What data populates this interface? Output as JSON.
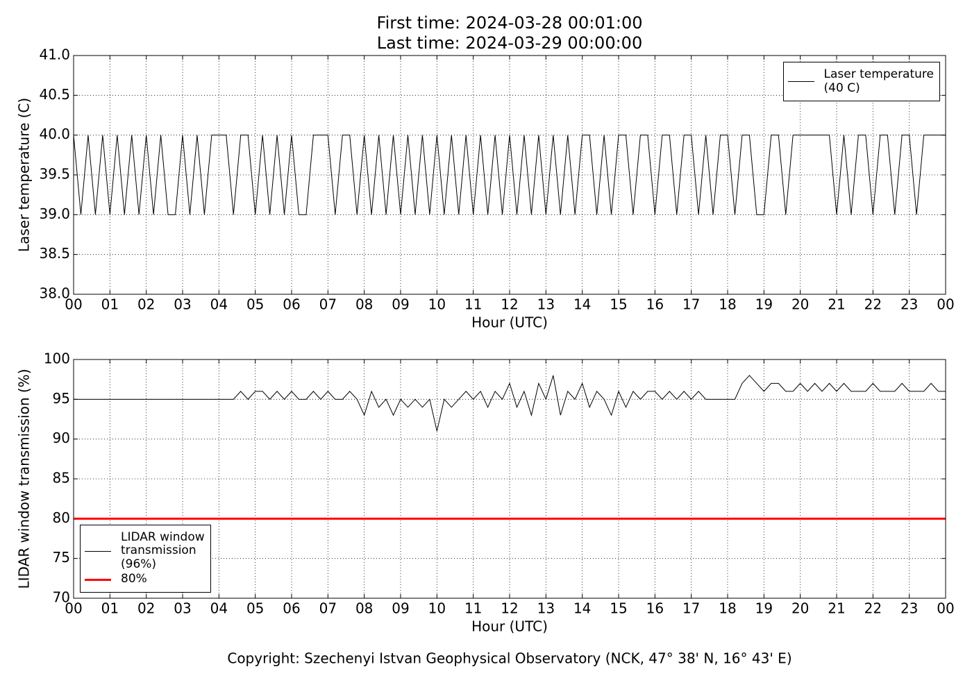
{
  "chart_data": [
    {
      "type": "line",
      "title": "First time: 2024-03-28 00:01:00",
      "subtitle": "Last time: 2024-03-29 00:00:00",
      "x_label": "Hour (UTC)",
      "y_label": "Laser temperature (C)",
      "xlim": [
        0,
        24
      ],
      "xticks": [
        {
          "value": 0,
          "label": "00"
        },
        {
          "value": 1,
          "label": "01"
        },
        {
          "value": 2,
          "label": "02"
        },
        {
          "value": 3,
          "label": "03"
        },
        {
          "value": 4,
          "label": "04"
        },
        {
          "value": 5,
          "label": "05"
        },
        {
          "value": 6,
          "label": "06"
        },
        {
          "value": 7,
          "label": "07"
        },
        {
          "value": 8,
          "label": "08"
        },
        {
          "value": 9,
          "label": "09"
        },
        {
          "value": 10,
          "label": "10"
        },
        {
          "value": 11,
          "label": "11"
        },
        {
          "value": 12,
          "label": "12"
        },
        {
          "value": 13,
          "label": "13"
        },
        {
          "value": 14,
          "label": "14"
        },
        {
          "value": 15,
          "label": "15"
        },
        {
          "value": 16,
          "label": "16"
        },
        {
          "value": 17,
          "label": "17"
        },
        {
          "value": 18,
          "label": "18"
        },
        {
          "value": 19,
          "label": "19"
        },
        {
          "value": 20,
          "label": "20"
        },
        {
          "value": 21,
          "label": "21"
        },
        {
          "value": 22,
          "label": "22"
        },
        {
          "value": 23,
          "label": "23"
        },
        {
          "value": 24,
          "label": "00"
        }
      ],
      "ylim": [
        38,
        41
      ],
      "yticks": [
        {
          "value": 38,
          "label": "38.0"
        },
        38.5,
        {
          "value": 39,
          "label": "39.0"
        },
        39.5,
        {
          "value": 40,
          "label": "40.0"
        },
        40.5,
        {
          "value": 41,
          "label": "41.0"
        }
      ],
      "grid": true,
      "legend": "upper right",
      "series": [
        {
          "name": "Laser temperature\n(40 C)",
          "color": "#000000",
          "width": 1,
          "x": [
            0,
            0.2,
            0.4,
            0.6,
            0.8,
            1,
            1.2,
            1.4,
            1.6,
            1.8,
            2,
            2.2,
            2.4,
            2.6,
            2.8,
            3,
            3.2,
            3.4,
            3.6,
            3.8,
            4,
            4.2,
            4.4,
            4.6,
            4.8,
            5,
            5.2,
            5.4,
            5.6,
            5.8,
            6,
            6.2,
            6.4,
            6.6,
            6.8,
            7,
            7.2,
            7.4,
            7.6,
            7.8,
            8,
            8.2,
            8.4,
            8.6,
            8.8,
            9,
            9.2,
            9.4,
            9.6,
            9.8,
            10,
            10.2,
            10.4,
            10.6,
            10.8,
            11,
            11.2,
            11.4,
            11.6,
            11.8,
            12,
            12.2,
            12.4,
            12.6,
            12.8,
            13,
            13.2,
            13.4,
            13.6,
            13.8,
            14,
            14.2,
            14.4,
            14.6,
            14.8,
            15,
            15.2,
            15.4,
            15.6,
            15.8,
            16,
            16.2,
            16.4,
            16.6,
            16.8,
            17,
            17.2,
            17.4,
            17.6,
            17.8,
            18,
            18.2,
            18.4,
            18.6,
            18.8,
            19,
            19.2,
            19.4,
            19.6,
            19.8,
            20,
            20.2,
            20.4,
            20.6,
            20.8,
            21,
            21.2,
            21.4,
            21.6,
            21.8,
            22,
            22.2,
            22.4,
            22.6,
            22.8,
            23,
            23.2,
            23.4,
            23.6,
            23.8,
            24
          ],
          "values": [
            40,
            39,
            40,
            39,
            40,
            39,
            40,
            39,
            40,
            39,
            40,
            39,
            40,
            39,
            39,
            40,
            39,
            40,
            39,
            40,
            40,
            40,
            39,
            40,
            40,
            39,
            40,
            39,
            40,
            39,
            40,
            39,
            39,
            40,
            40,
            40,
            39,
            40,
            40,
            39,
            40,
            39,
            40,
            39,
            40,
            39,
            40,
            39,
            40,
            39,
            40,
            39,
            40,
            39,
            40,
            39,
            40,
            39,
            40,
            39,
            40,
            39,
            40,
            39,
            40,
            39,
            40,
            39,
            40,
            39,
            40,
            40,
            39,
            40,
            39,
            40,
            40,
            39,
            40,
            40,
            39,
            40,
            40,
            39,
            40,
            40,
            39,
            40,
            39,
            40,
            40,
            39,
            40,
            40,
            39,
            39,
            40,
            40,
            39,
            40,
            40,
            40,
            40,
            40,
            40,
            39,
            40,
            39,
            40,
            40,
            39,
            40,
            40,
            39,
            40,
            40,
            39,
            40,
            40,
            40,
            40
          ]
        }
      ]
    },
    {
      "type": "line",
      "x_label": "Hour (UTC)",
      "y_label": "LIDAR window transmission (%)",
      "xlim": [
        0,
        24
      ],
      "xticks": [
        {
          "value": 0,
          "label": "00"
        },
        {
          "value": 1,
          "label": "01"
        },
        {
          "value": 2,
          "label": "02"
        },
        {
          "value": 3,
          "label": "03"
        },
        {
          "value": 4,
          "label": "04"
        },
        {
          "value": 5,
          "label": "05"
        },
        {
          "value": 6,
          "label": "06"
        },
        {
          "value": 7,
          "label": "07"
        },
        {
          "value": 8,
          "label": "08"
        },
        {
          "value": 9,
          "label": "09"
        },
        {
          "value": 10,
          "label": "10"
        },
        {
          "value": 11,
          "label": "11"
        },
        {
          "value": 12,
          "label": "12"
        },
        {
          "value": 13,
          "label": "13"
        },
        {
          "value": 14,
          "label": "14"
        },
        {
          "value": 15,
          "label": "15"
        },
        {
          "value": 16,
          "label": "16"
        },
        {
          "value": 17,
          "label": "17"
        },
        {
          "value": 18,
          "label": "18"
        },
        {
          "value": 19,
          "label": "19"
        },
        {
          "value": 20,
          "label": "20"
        },
        {
          "value": 21,
          "label": "21"
        },
        {
          "value": 22,
          "label": "22"
        },
        {
          "value": 23,
          "label": "23"
        },
        {
          "value": 24,
          "label": "00"
        }
      ],
      "ylim": [
        70,
        100
      ],
      "yticks": [
        70,
        75,
        80,
        85,
        90,
        95,
        100
      ],
      "grid": true,
      "legend": "lower left",
      "series": [
        {
          "name": "LIDAR window\ntransmission\n(96%)",
          "color": "#000000",
          "width": 1,
          "x": [
            0,
            0.2,
            0.4,
            0.6,
            0.8,
            1,
            1.2,
            1.4,
            1.6,
            1.8,
            2,
            2.2,
            2.4,
            2.6,
            2.8,
            3,
            3.2,
            3.4,
            3.6,
            3.8,
            4,
            4.2,
            4.4,
            4.6,
            4.8,
            5,
            5.2,
            5.4,
            5.6,
            5.8,
            6,
            6.2,
            6.4,
            6.6,
            6.8,
            7,
            7.2,
            7.4,
            7.6,
            7.8,
            8,
            8.2,
            8.4,
            8.6,
            8.8,
            9,
            9.2,
            9.4,
            9.6,
            9.8,
            10,
            10.2,
            10.4,
            10.6,
            10.8,
            11,
            11.2,
            11.4,
            11.6,
            11.8,
            12,
            12.2,
            12.4,
            12.6,
            12.8,
            13,
            13.2,
            13.4,
            13.6,
            13.8,
            14,
            14.2,
            14.4,
            14.6,
            14.8,
            15,
            15.2,
            15.4,
            15.6,
            15.8,
            16,
            16.2,
            16.4,
            16.6,
            16.8,
            17,
            17.2,
            17.4,
            17.6,
            17.8,
            18,
            18.2,
            18.4,
            18.6,
            18.8,
            19,
            19.2,
            19.4,
            19.6,
            19.8,
            20,
            20.2,
            20.4,
            20.6,
            20.8,
            21,
            21.2,
            21.4,
            21.6,
            21.8,
            22,
            22.2,
            22.4,
            22.6,
            22.8,
            23,
            23.2,
            23.4,
            23.6,
            23.8,
            24
          ],
          "values": [
            95,
            95,
            95,
            95,
            95,
            95,
            95,
            95,
            95,
            95,
            95,
            95,
            95,
            95,
            95,
            95,
            95,
            95,
            95,
            95,
            95,
            95,
            95,
            96,
            95,
            96,
            96,
            95,
            96,
            95,
            96,
            95,
            95,
            96,
            95,
            96,
            95,
            95,
            96,
            95,
            93,
            96,
            94,
            95,
            93,
            95,
            94,
            95,
            94,
            95,
            91,
            95,
            94,
            95,
            96,
            95,
            96,
            94,
            96,
            95,
            97,
            94,
            96,
            93,
            97,
            95,
            98,
            93,
            96,
            95,
            97,
            94,
            96,
            95,
            93,
            96,
            94,
            96,
            95,
            96,
            96,
            95,
            96,
            95,
            96,
            95,
            96,
            95,
            95,
            95,
            95,
            95,
            97,
            98,
            97,
            96,
            97,
            97,
            96,
            96,
            97,
            96,
            97,
            96,
            97,
            96,
            97,
            96,
            96,
            96,
            97,
            96,
            96,
            96,
            97,
            96,
            96,
            96,
            97,
            96,
            96
          ]
        },
        {
          "name": "80%",
          "color": "#ff0000",
          "width": 3,
          "x": [
            0,
            24
          ],
          "values": [
            80,
            80
          ]
        }
      ]
    }
  ],
  "footer": "Copyright: Szechenyi Istvan Geophysical Observatory (NCK, 47° 38' N, 16° 43' E)"
}
